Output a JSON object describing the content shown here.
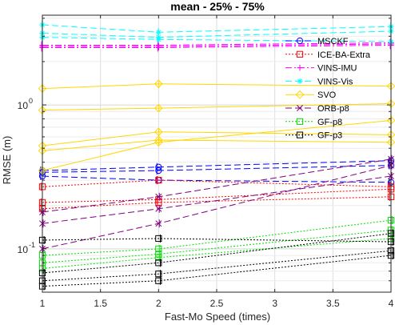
{
  "chart_data": {
    "type": "line",
    "title": "mean - 25% - 75%",
    "xlabel": "Fast-Mo Speed (times)",
    "ylabel": "RMSE (m)",
    "xlim": [
      1,
      4
    ],
    "ylim": [
      0.05,
      4.2
    ],
    "yscale": "log",
    "grid": true,
    "legend_position": "top-right",
    "x_ticks": [
      "1",
      "1.5",
      "2",
      "2.5",
      "3",
      "3.5",
      "4"
    ],
    "y_ticks": [
      {
        "value": 0.1,
        "base": "10",
        "exp": "-1"
      },
      {
        "value": 1,
        "base": "10",
        "exp": "0"
      }
    ],
    "x": [
      1,
      2,
      4
    ],
    "series": [
      {
        "name": "MSCKF",
        "color": "#0000ff",
        "linestyle": "dashed",
        "marker": "circle",
        "lines": [
          [
            0.34,
            0.35,
            0.38
          ],
          [
            0.32,
            0.3,
            0.29
          ],
          [
            0.35,
            0.37,
            0.41
          ]
        ]
      },
      {
        "name": "ICE-BA-Extra",
        "color": "#ff0000",
        "linestyle": "dotted",
        "marker": "square",
        "lines": [
          [
            0.21,
            0.22,
            0.26
          ],
          [
            0.19,
            0.21,
            0.23
          ],
          [
            0.27,
            0.3,
            0.27
          ]
        ]
      },
      {
        "name": "VINS-IMU",
        "color": "#ff00ff",
        "linestyle": "dashdot",
        "marker": "plus",
        "lines": [
          [
            2.55,
            2.55,
            2.65
          ],
          [
            2.5,
            2.5,
            2.6
          ],
          [
            2.6,
            2.6,
            2.7
          ]
        ]
      },
      {
        "name": "VINS-Vis",
        "color": "#00ffff",
        "linestyle": "dashed",
        "marker": "star",
        "lines": [
          [
            3.15,
            2.95,
            3.25
          ],
          [
            2.95,
            2.85,
            2.75
          ],
          [
            3.6,
            3.2,
            3.5
          ]
        ]
      },
      {
        "name": "SVO",
        "color": "#ffd700",
        "linestyle": "solid",
        "marker": "diamond",
        "lines": [
          [
            0.92,
            0.95,
            1.02
          ],
          [
            1.3,
            1.4,
            1.35
          ],
          [
            0.52,
            0.65,
            0.62
          ],
          [
            0.48,
            0.57,
            0.55
          ],
          [
            0.35,
            0.55,
            0.78
          ]
        ]
      },
      {
        "name": "ORB-p8",
        "color": "#800080",
        "linestyle": "dashed",
        "marker": "x",
        "lines": [
          [
            0.18,
            0.23,
            0.42
          ],
          [
            0.15,
            0.19,
            0.32
          ],
          [
            0.1,
            0.15,
            0.38
          ]
        ]
      },
      {
        "name": "GF-p8",
        "color": "#00dd00",
        "linestyle": "dotted",
        "marker": "square",
        "lines": [
          [
            0.08,
            0.092,
            0.135
          ],
          [
            0.073,
            0.087,
            0.118
          ],
          [
            0.09,
            0.1,
            0.158
          ]
        ]
      },
      {
        "name": "GF-p3",
        "color": "#000000",
        "linestyle": "dotted",
        "marker": "square",
        "lines": [
          [
            0.068,
            0.08,
            0.128
          ],
          [
            0.06,
            0.067,
            0.097
          ],
          [
            0.115,
            0.118,
            0.112
          ],
          [
            0.055,
            0.06,
            0.09
          ]
        ]
      }
    ]
  }
}
